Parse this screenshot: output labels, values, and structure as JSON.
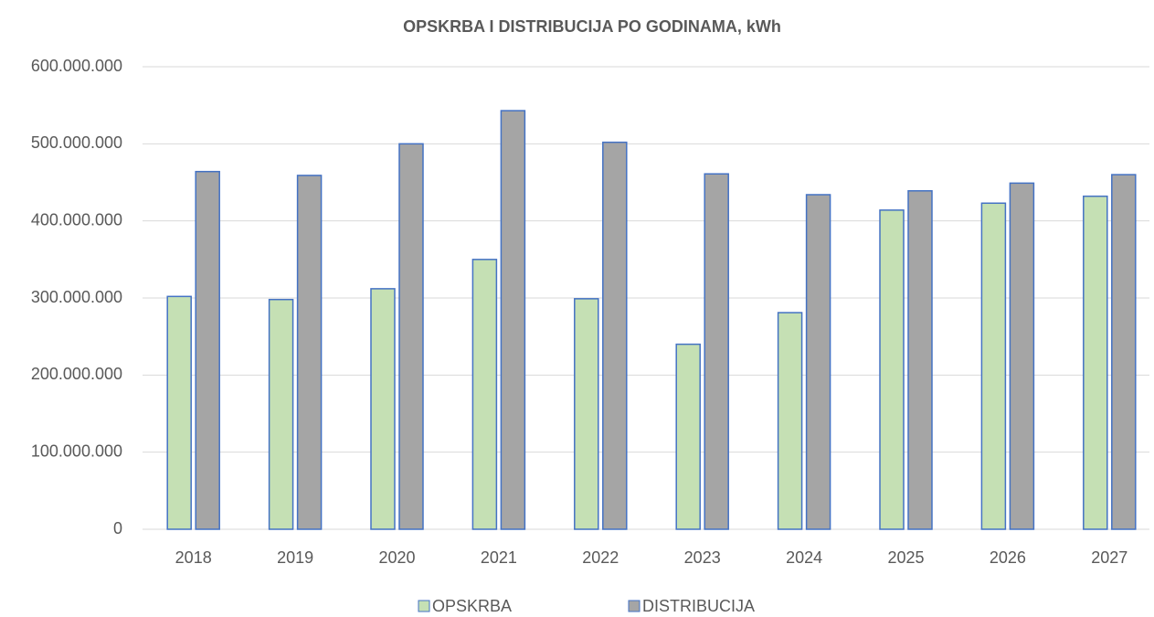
{
  "chart_data": {
    "type": "bar",
    "title": "OPSKRBA I DISTRIBUCIJA PO GODINAMA, kWh",
    "categories": [
      "2018",
      "2019",
      "2020",
      "2021",
      "2022",
      "2023",
      "2024",
      "2025",
      "2026",
      "2027"
    ],
    "series": [
      {
        "name": "OPSKRBA",
        "color": "#c5e0b4",
        "values": [
          302000000,
          298000000,
          312000000,
          350000000,
          299000000,
          240000000,
          281000000,
          414000000,
          423000000,
          432000000
        ]
      },
      {
        "name": "DISTRIBUCIJA",
        "color": "#a5a5a5",
        "values": [
          464000000,
          459000000,
          500000000,
          543000000,
          502000000,
          461000000,
          434000000,
          439000000,
          449000000,
          460000000
        ]
      }
    ],
    "bar_edge_color": "#4472c4",
    "ylim": [
      0,
      600000000
    ],
    "yticks": [
      0,
      {
        "value": 100000000,
        "label": "100.000.000"
      },
      {
        "value": 200000000,
        "label": "200.000.000"
      },
      {
        "value": 300000000,
        "label": "300.000.000"
      },
      {
        "value": 400000000,
        "label": "400.000.000"
      },
      {
        "value": 500000000,
        "label": "500.000.000"
      },
      {
        "value": 600000000,
        "label": "600.000.000"
      }
    ],
    "grid": true,
    "legend": "bottom"
  }
}
